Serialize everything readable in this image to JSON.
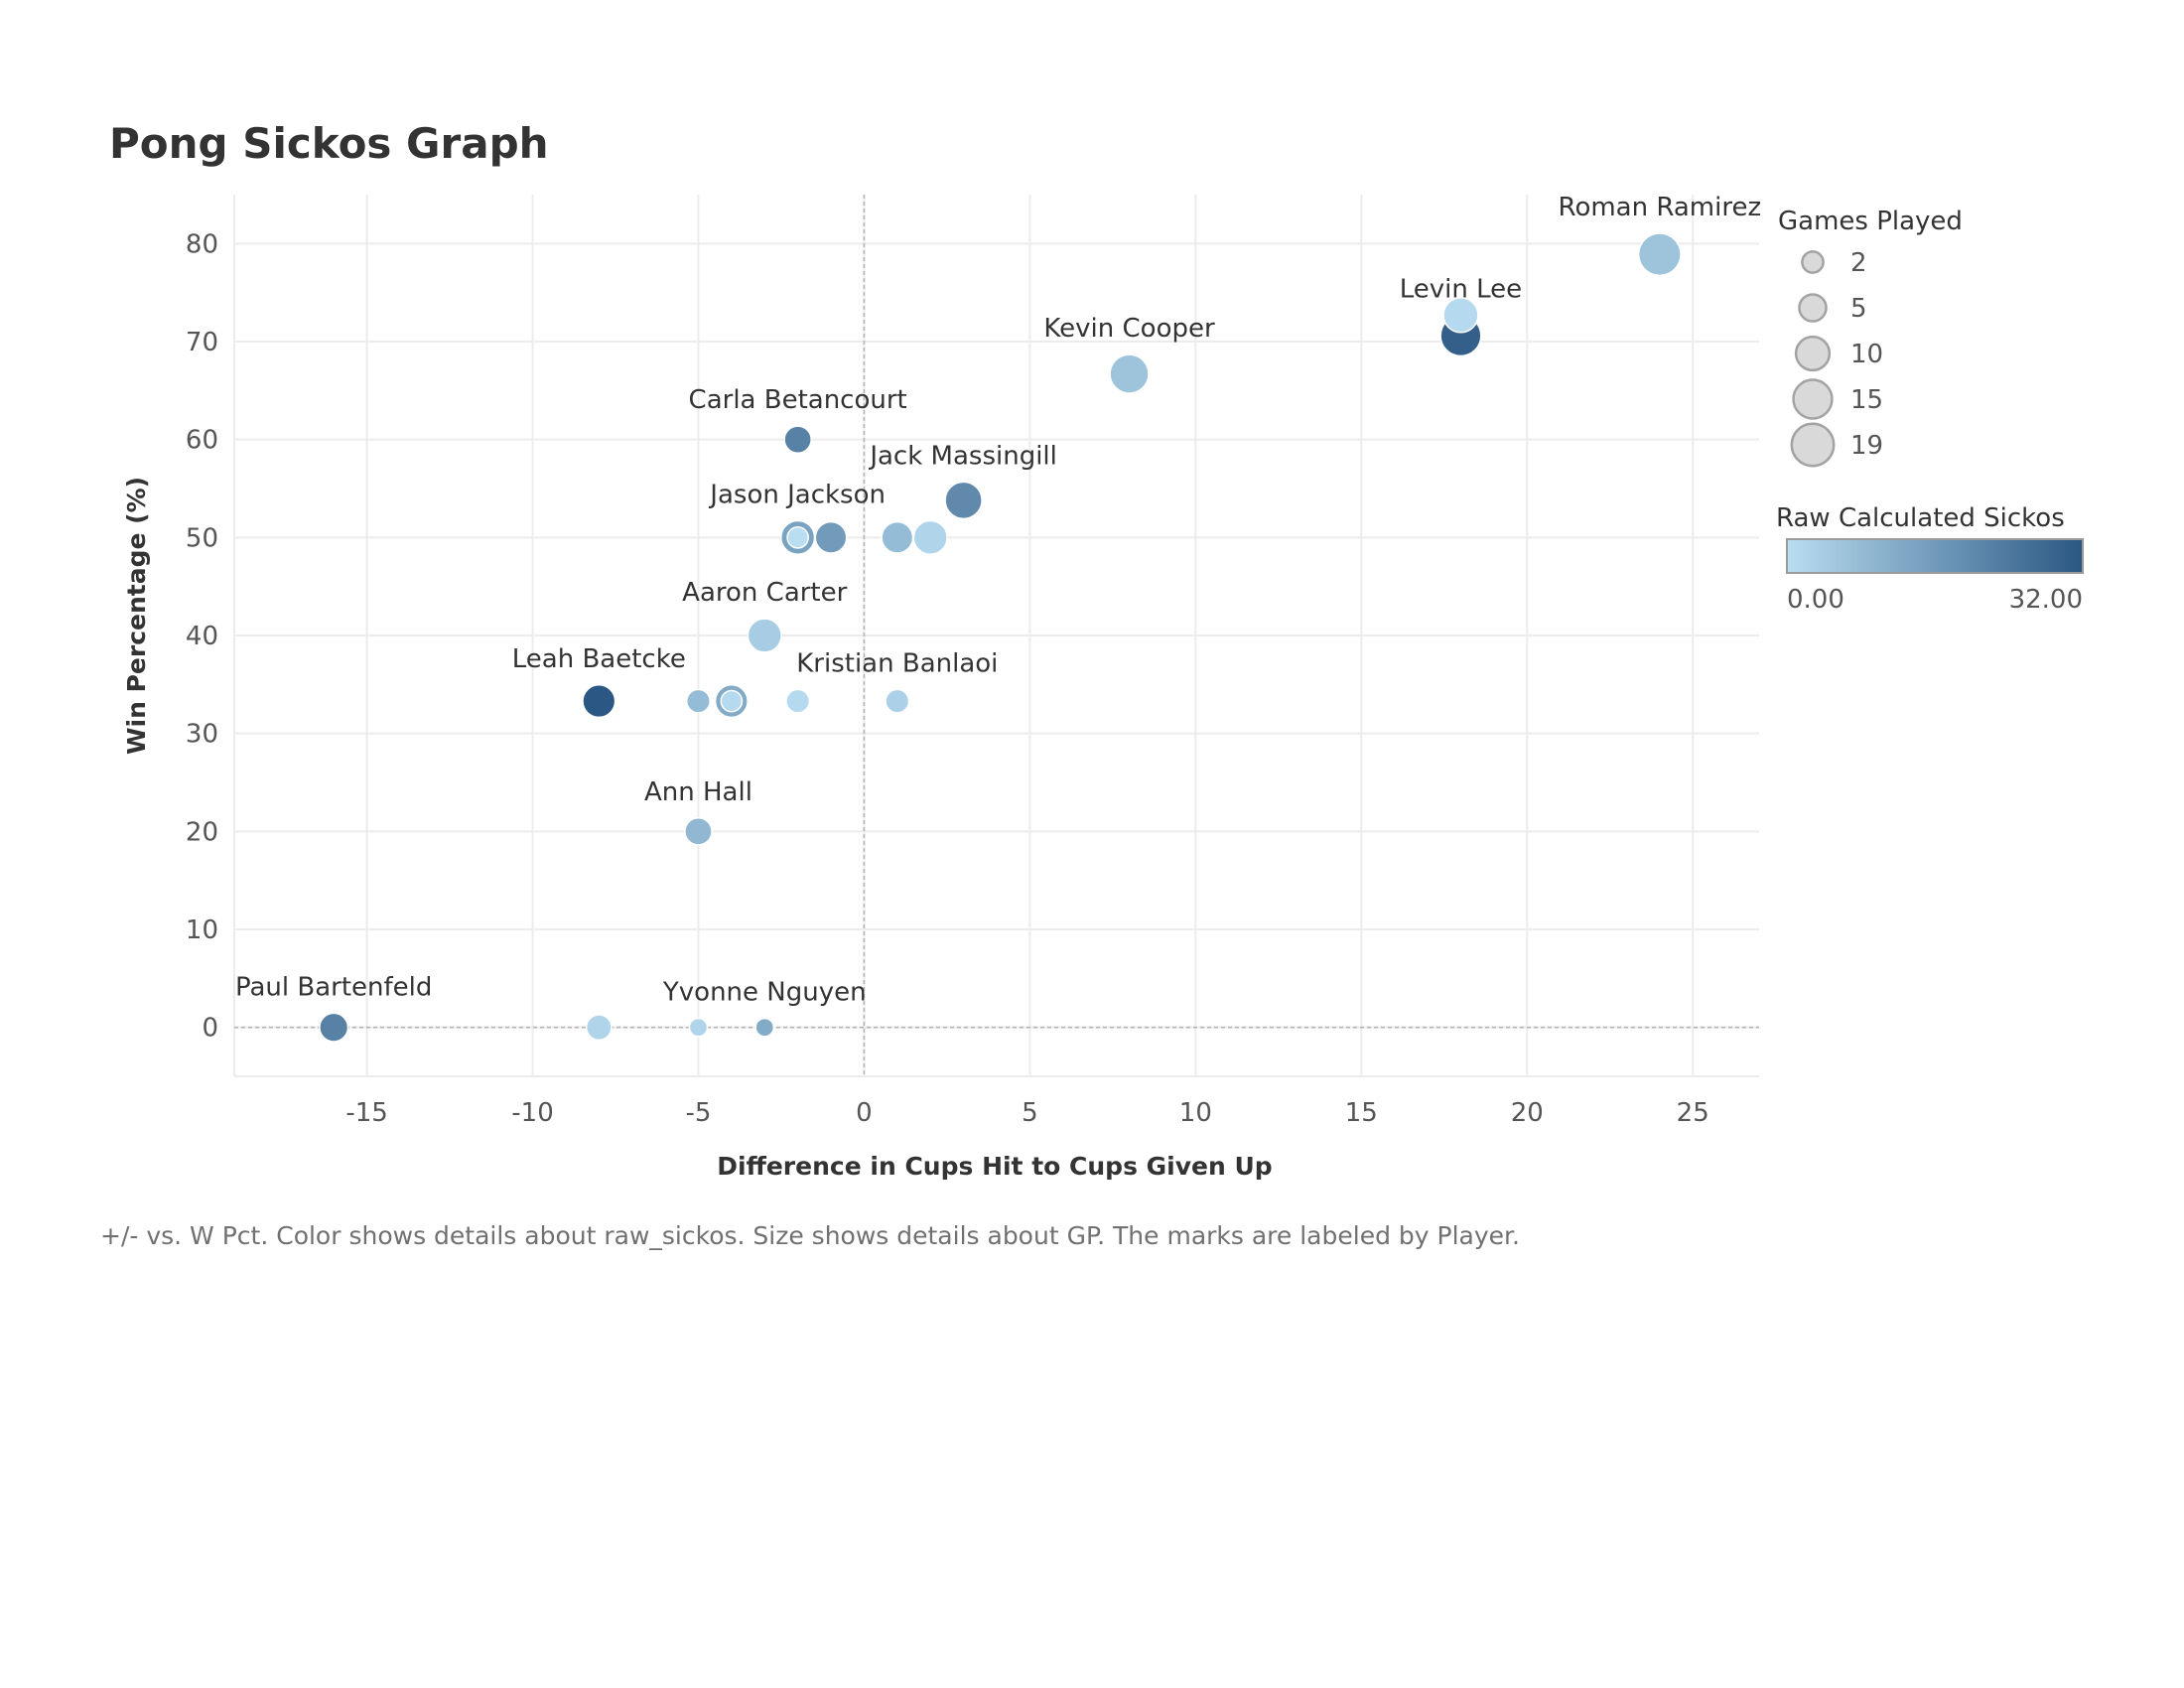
{
  "chart_data": {
    "type": "scatter",
    "title": "Pong Sickos Graph",
    "xlabel": "Difference in Cups Hit to Cups Given Up",
    "ylabel": "Win Percentage (%)",
    "xlim": [
      -19,
      27
    ],
    "ylim": [
      -5,
      85
    ],
    "xticks": [
      -15,
      -10,
      -5,
      0,
      5,
      10,
      15,
      20,
      25
    ],
    "yticks": [
      0,
      10,
      20,
      30,
      40,
      50,
      60,
      70,
      80
    ],
    "grid": true,
    "reference_lines": {
      "x": 0,
      "y": 0
    },
    "color_scale": {
      "low": "#b9ddf1",
      "high": "#2a5783"
    },
    "points": [
      {
        "player": "Roman Ramirez",
        "x": 24,
        "y": 78.9,
        "gp": 19,
        "sickos": 6,
        "label": "Roman Ramirez"
      },
      {
        "player": "",
        "x": 18,
        "y": 72.7,
        "gp": 11,
        "sickos": 1,
        "label": ""
      },
      {
        "player": "Levin Lee",
        "x": 18,
        "y": 70.6,
        "gp": 17,
        "sickos": 30,
        "label": "Levin Lee"
      },
      {
        "player": "Kevin Cooper",
        "x": 8,
        "y": 66.7,
        "gp": 15,
        "sickos": 6,
        "label": "Kevin Cooper"
      },
      {
        "player": "Carla Betancourt",
        "x": -2,
        "y": 60,
        "gp": 5,
        "sickos": 22,
        "label": "Carla Betancourt"
      },
      {
        "player": "Jack Massingill",
        "x": 3,
        "y": 53.8,
        "gp": 13,
        "sickos": 20,
        "label": "Jack Massingill"
      },
      {
        "player": "Jason Jackson",
        "x": -2,
        "y": 50,
        "gp": 10,
        "sickos": 14,
        "label": "Jason Jackson"
      },
      {
        "player": "",
        "x": -2,
        "y": 50,
        "gp": 2,
        "sickos": 0,
        "label": ""
      },
      {
        "player": "",
        "x": -1,
        "y": 50,
        "gp": 8,
        "sickos": 16,
        "label": ""
      },
      {
        "player": "",
        "x": 1,
        "y": 50,
        "gp": 8,
        "sickos": 8,
        "label": ""
      },
      {
        "player": "",
        "x": 2,
        "y": 50,
        "gp": 10,
        "sickos": 2,
        "label": ""
      },
      {
        "player": "Aaron Carter",
        "x": -3,
        "y": 40,
        "gp": 10,
        "sickos": 4,
        "label": "Aaron Carter"
      },
      {
        "player": "Leah Baetcke",
        "x": -8,
        "y": 33.3,
        "gp": 9,
        "sickos": 32,
        "label": "Leah Baetcke"
      },
      {
        "player": "",
        "x": -5,
        "y": 33.3,
        "gp": 3,
        "sickos": 8,
        "label": ""
      },
      {
        "player": "",
        "x": -4,
        "y": 33.3,
        "gp": 9,
        "sickos": 12,
        "label": ""
      },
      {
        "player": "",
        "x": -4,
        "y": 33.3,
        "gp": 2,
        "sickos": 1,
        "label": ""
      },
      {
        "player": "",
        "x": -2,
        "y": 33.3,
        "gp": 3,
        "sickos": 1,
        "label": ""
      },
      {
        "player": "Kristian Banlaoi",
        "x": 1,
        "y": 33.3,
        "gp": 3,
        "sickos": 3,
        "label": "Kristian Banlaoi"
      },
      {
        "player": "Ann Hall",
        "x": -5,
        "y": 20,
        "gp": 5,
        "sickos": 9,
        "label": "Ann Hall"
      },
      {
        "player": "Paul Bartenfeld",
        "x": -16,
        "y": 0,
        "gp": 6,
        "sickos": 22,
        "label": "Paul Bartenfeld"
      },
      {
        "player": "",
        "x": -8,
        "y": 0,
        "gp": 4,
        "sickos": 2,
        "label": ""
      },
      {
        "player": "",
        "x": -5,
        "y": 0,
        "gp": 1,
        "sickos": 2,
        "label": ""
      },
      {
        "player": "Yvonne Nguyen",
        "x": -3,
        "y": 0,
        "gp": 1,
        "sickos": 12,
        "label": "Yvonne Nguyen"
      }
    ],
    "legend": {
      "size_title": "Games Played",
      "size_entries": [
        2,
        5,
        10,
        15,
        19
      ],
      "color_title": "Raw Calculated Sickos",
      "color_min_label": "0.00",
      "color_max_label": "32.00"
    }
  },
  "caption": "+/- vs. W Pct.  Color shows details about raw_sickos.  Size shows details about GP.  The marks are labeled by Player."
}
